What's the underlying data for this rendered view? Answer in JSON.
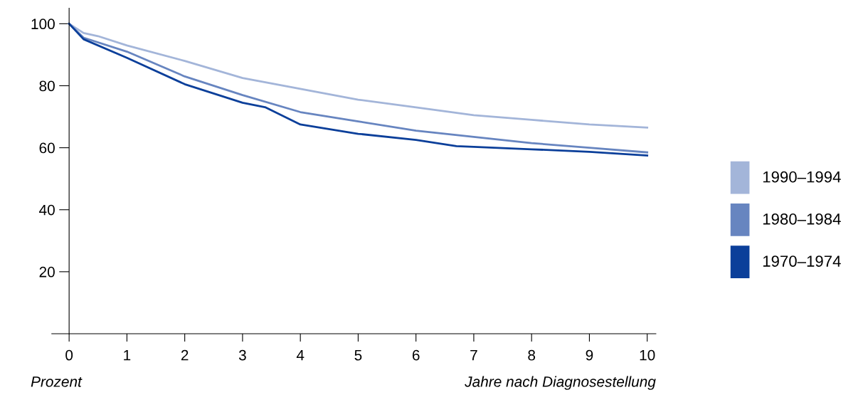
{
  "chart_data": {
    "type": "line",
    "xlabel": "Jahre nach Diagnosestellung",
    "ylabel": "Prozent",
    "xlim": [
      -0.3,
      10.15
    ],
    "ylim": [
      0,
      105
    ],
    "xticks": [
      0,
      1,
      2,
      3,
      4,
      5,
      6,
      7,
      8,
      9,
      10
    ],
    "yticks": [
      20,
      40,
      60,
      80,
      100
    ],
    "grid": false,
    "legend": "right",
    "marker": "none",
    "line_style": "solid",
    "series": [
      {
        "name": "1990–1994",
        "color": "#a3b5d9",
        "x": [
          0,
          0.25,
          0.5,
          1,
          2,
          3,
          4,
          5,
          6,
          7,
          8,
          9,
          10
        ],
        "values": [
          100,
          97,
          96,
          93,
          88,
          82.5,
          79,
          75.5,
          73,
          70.5,
          69,
          67.5,
          66.5
        ]
      },
      {
        "name": "1980–1984",
        "color": "#6785c0",
        "x": [
          0,
          0.25,
          1,
          2,
          3,
          4,
          5,
          6,
          7,
          8,
          9,
          10
        ],
        "values": [
          100,
          95.5,
          91,
          83,
          77,
          71.5,
          68.5,
          65.5,
          63.5,
          61.5,
          60,
          58.5
        ]
      },
      {
        "name": "1970–1974",
        "color": "#0b3f9a",
        "x": [
          0,
          0.25,
          1,
          2,
          3,
          3.4,
          4,
          5,
          6,
          6.7,
          7,
          8,
          9,
          10
        ],
        "values": [
          100,
          95,
          89,
          80.5,
          74.5,
          73,
          67.5,
          64.5,
          62.5,
          60.5,
          60.3,
          59.5,
          58.7,
          57.5
        ]
      }
    ]
  }
}
